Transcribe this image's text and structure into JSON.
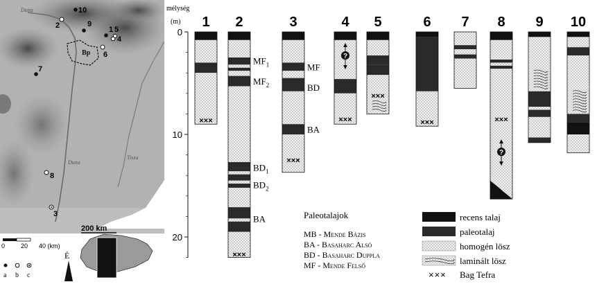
{
  "map": {
    "river_labels": [
      "Duna",
      "Duna",
      "Tisza"
    ],
    "city_label": "Bp",
    "site_numbers": [
      "1",
      "2",
      "3",
      "4",
      "5",
      "6",
      "7",
      "8",
      "9",
      "10"
    ],
    "scale_labels": [
      "0",
      "20",
      "40 (km)"
    ],
    "north_label": "É",
    "legend_labels": [
      "a",
      "b",
      "c"
    ],
    "inset_scale": "200 km"
  },
  "diagram": {
    "depth_title": "mélység",
    "depth_unit": "(m)",
    "depth_ticks": [
      "0",
      "10",
      "20"
    ],
    "depth_range_m": [
      0,
      22
    ],
    "columns": [
      {
        "id": "1",
        "depth": 9.0,
        "layers": [
          {
            "from": 0,
            "to": 0.8,
            "type": "recens"
          },
          {
            "from": 0.8,
            "to": 3.0,
            "type": "homogen"
          },
          {
            "from": 3.0,
            "to": 4.0,
            "type": "paleo"
          },
          {
            "from": 4.0,
            "to": 9.0,
            "type": "homogen"
          }
        ],
        "tephra": [
          8.6
        ],
        "question": []
      },
      {
        "id": "2",
        "depth": 22.0,
        "layers": [
          {
            "from": 0,
            "to": 0.8,
            "type": "recens"
          },
          {
            "from": 0.8,
            "to": 2.5,
            "type": "homogen"
          },
          {
            "from": 2.5,
            "to": 3.2,
            "type": "paleo"
          },
          {
            "from": 3.2,
            "to": 3.5,
            "type": "homogen"
          },
          {
            "from": 3.5,
            "to": 3.8,
            "type": "paleo"
          },
          {
            "from": 3.8,
            "to": 4.3,
            "type": "homogen"
          },
          {
            "from": 4.3,
            "to": 5.3,
            "type": "paleo"
          },
          {
            "from": 5.3,
            "to": 12.7,
            "type": "homogen"
          },
          {
            "from": 12.7,
            "to": 13.6,
            "type": "paleo"
          },
          {
            "from": 13.6,
            "to": 13.9,
            "type": "homogen"
          },
          {
            "from": 13.9,
            "to": 14.5,
            "type": "paleo"
          },
          {
            "from": 14.5,
            "to": 14.8,
            "type": "homogen"
          },
          {
            "from": 14.8,
            "to": 15.2,
            "type": "paleo"
          },
          {
            "from": 15.2,
            "to": 17.1,
            "type": "homogen"
          },
          {
            "from": 17.1,
            "to": 18.2,
            "type": "paleo"
          },
          {
            "from": 18.2,
            "to": 18.5,
            "type": "homogen"
          },
          {
            "from": 18.5,
            "to": 19.5,
            "type": "paleo"
          },
          {
            "from": 19.5,
            "to": 22.0,
            "type": "homogen"
          }
        ],
        "tephra": [
          21.7
        ],
        "question": []
      },
      {
        "id": "3",
        "depth": 13.7,
        "layers": [
          {
            "from": 0,
            "to": 0.8,
            "type": "recens"
          },
          {
            "from": 0.8,
            "to": 3.0,
            "type": "homogen"
          },
          {
            "from": 3.0,
            "to": 3.8,
            "type": "paleo"
          },
          {
            "from": 3.8,
            "to": 4.5,
            "type": "homogen"
          },
          {
            "from": 4.5,
            "to": 5.8,
            "type": "paleo"
          },
          {
            "from": 5.8,
            "to": 9.0,
            "type": "homogen"
          },
          {
            "from": 9.0,
            "to": 10.0,
            "type": "paleo"
          },
          {
            "from": 10.0,
            "to": 13.7,
            "type": "homogen"
          }
        ],
        "tephra": [
          12.5
        ],
        "question": []
      },
      {
        "id": "4",
        "depth": 9.0,
        "layers": [
          {
            "from": 0,
            "to": 0.8,
            "type": "recens"
          },
          {
            "from": 0.8,
            "to": 4.6,
            "type": "homogen"
          },
          {
            "from": 4.6,
            "to": 6.0,
            "type": "paleo"
          },
          {
            "from": 6.0,
            "to": 9.0,
            "type": "homogen"
          }
        ],
        "tephra": [
          8.5
        ],
        "question": [
          2.3
        ]
      },
      {
        "id": "5",
        "depth": 8.0,
        "layers": [
          {
            "from": 0,
            "to": 0.8,
            "type": "recens"
          },
          {
            "from": 0.8,
            "to": 2.3,
            "type": "homogen"
          },
          {
            "from": 2.3,
            "to": 3.2,
            "type": "paleo"
          },
          {
            "from": 3.2,
            "to": 4.2,
            "type": "paleo"
          },
          {
            "from": 4.2,
            "to": 6.5,
            "type": "homogen"
          },
          {
            "from": 6.5,
            "to": 8.0,
            "type": "laminalt"
          }
        ],
        "tephra": [
          6.2
        ],
        "question": []
      },
      {
        "id": "6",
        "depth": 9.2,
        "layers": [
          {
            "from": 0,
            "to": 0.5,
            "type": "recens"
          },
          {
            "from": 0.5,
            "to": 5.8,
            "type": "paleo"
          },
          {
            "from": 5.8,
            "to": 9.2,
            "type": "homogen"
          }
        ],
        "tephra": [
          8.8
        ],
        "question": []
      },
      {
        "id": "7",
        "depth": 5.5,
        "layers": [
          {
            "from": 0,
            "to": 1.3,
            "type": "homogen"
          },
          {
            "from": 1.3,
            "to": 1.7,
            "type": "paleo"
          },
          {
            "from": 1.7,
            "to": 2.2,
            "type": "homogen"
          },
          {
            "from": 2.2,
            "to": 2.6,
            "type": "paleo"
          },
          {
            "from": 2.6,
            "to": 5.5,
            "type": "homogen"
          }
        ],
        "tephra": [],
        "question": []
      },
      {
        "id": "8",
        "depth": 16.3,
        "layers": [
          {
            "from": 0,
            "to": 0.8,
            "type": "recens"
          },
          {
            "from": 0.8,
            "to": 2.7,
            "type": "homogen"
          },
          {
            "from": 2.7,
            "to": 3.0,
            "type": "paleo"
          },
          {
            "from": 3.0,
            "to": 3.3,
            "type": "homogen"
          },
          {
            "from": 3.3,
            "to": 3.6,
            "type": "paleo"
          },
          {
            "from": 3.6,
            "to": 14.5,
            "type": "homogen"
          },
          {
            "from": 14.5,
            "to": 16.3,
            "type": "wedge"
          }
        ],
        "tephra": [
          8.5
        ],
        "question": [
          11.7
        ]
      },
      {
        "id": "9",
        "depth": 10.8,
        "layers": [
          {
            "from": 0,
            "to": 0.5,
            "type": "recens"
          },
          {
            "from": 0.5,
            "to": 3.5,
            "type": "homogen"
          },
          {
            "from": 3.5,
            "to": 5.8,
            "type": "laminalt"
          },
          {
            "from": 5.8,
            "to": 7.3,
            "type": "paleo"
          },
          {
            "from": 7.3,
            "to": 7.6,
            "type": "homogen"
          },
          {
            "from": 7.6,
            "to": 8.3,
            "type": "paleo"
          },
          {
            "from": 8.3,
            "to": 10.3,
            "type": "homogen"
          },
          {
            "from": 10.3,
            "to": 10.8,
            "type": "paleo"
          }
        ],
        "tephra": [],
        "question": []
      },
      {
        "id": "10",
        "depth": 11.8,
        "layers": [
          {
            "from": 0,
            "to": 0.5,
            "type": "recens"
          },
          {
            "from": 0.5,
            "to": 1.5,
            "type": "homogen"
          },
          {
            "from": 1.5,
            "to": 2.3,
            "type": "paleo"
          },
          {
            "from": 2.3,
            "to": 5.5,
            "type": "homogen"
          },
          {
            "from": 5.5,
            "to": 8.0,
            "type": "laminalt"
          },
          {
            "from": 8.0,
            "to": 8.8,
            "type": "paleo"
          },
          {
            "from": 8.8,
            "to": 10.0,
            "type": "recens"
          },
          {
            "from": 10.0,
            "to": 11.8,
            "type": "homogen"
          }
        ],
        "tephra": [],
        "question": []
      }
    ],
    "horizon_labels": [
      {
        "col": "2",
        "text": "MF",
        "sub": "1",
        "depth": 2.8
      },
      {
        "col": "2",
        "text": "MF",
        "sub": "2",
        "depth": 4.8
      },
      {
        "col": "2",
        "text": "BD",
        "sub": "1",
        "depth": 13.2
      },
      {
        "col": "2",
        "text": "BD",
        "sub": "2",
        "depth": 14.9
      },
      {
        "col": "2",
        "text": "BA",
        "sub": "",
        "depth": 18.2
      },
      {
        "col": "3",
        "text": "MF",
        "sub": "",
        "depth": 3.4
      },
      {
        "col": "3",
        "text": "BD",
        "sub": "",
        "depth": 5.4
      },
      {
        "col": "3",
        "text": "BA",
        "sub": "",
        "depth": 9.5
      }
    ]
  },
  "paleosols": {
    "title": "Paleotalajok",
    "items": [
      {
        "abbr": "MB",
        "sep": " - ",
        "name": "Mende Bázis"
      },
      {
        "abbr": "BA",
        "sep": " - ",
        "name": "Basaharc Alsó"
      },
      {
        "abbr": "BD",
        "sep": " - ",
        "name": "Basaharc Duppla"
      },
      {
        "abbr": "MF",
        "sep": " - ",
        "name": "Mende Felső"
      }
    ]
  },
  "legend": {
    "items": [
      {
        "key": "recens",
        "label": "recens talaj"
      },
      {
        "key": "paleo",
        "label": "paleotalaj"
      },
      {
        "key": "homogen",
        "label": "homogén lösz"
      },
      {
        "key": "laminalt",
        "label": "laminált lösz"
      },
      {
        "key": "tephra",
        "label": "Bag Tefra"
      }
    ],
    "tephra_symbol": "×××"
  },
  "colors": {
    "recens": "#111111",
    "paleo": "#2a2a2a",
    "homogen_bg": "#ececec",
    "dot": "#555555",
    "map_bg": "#8c8c8c"
  }
}
